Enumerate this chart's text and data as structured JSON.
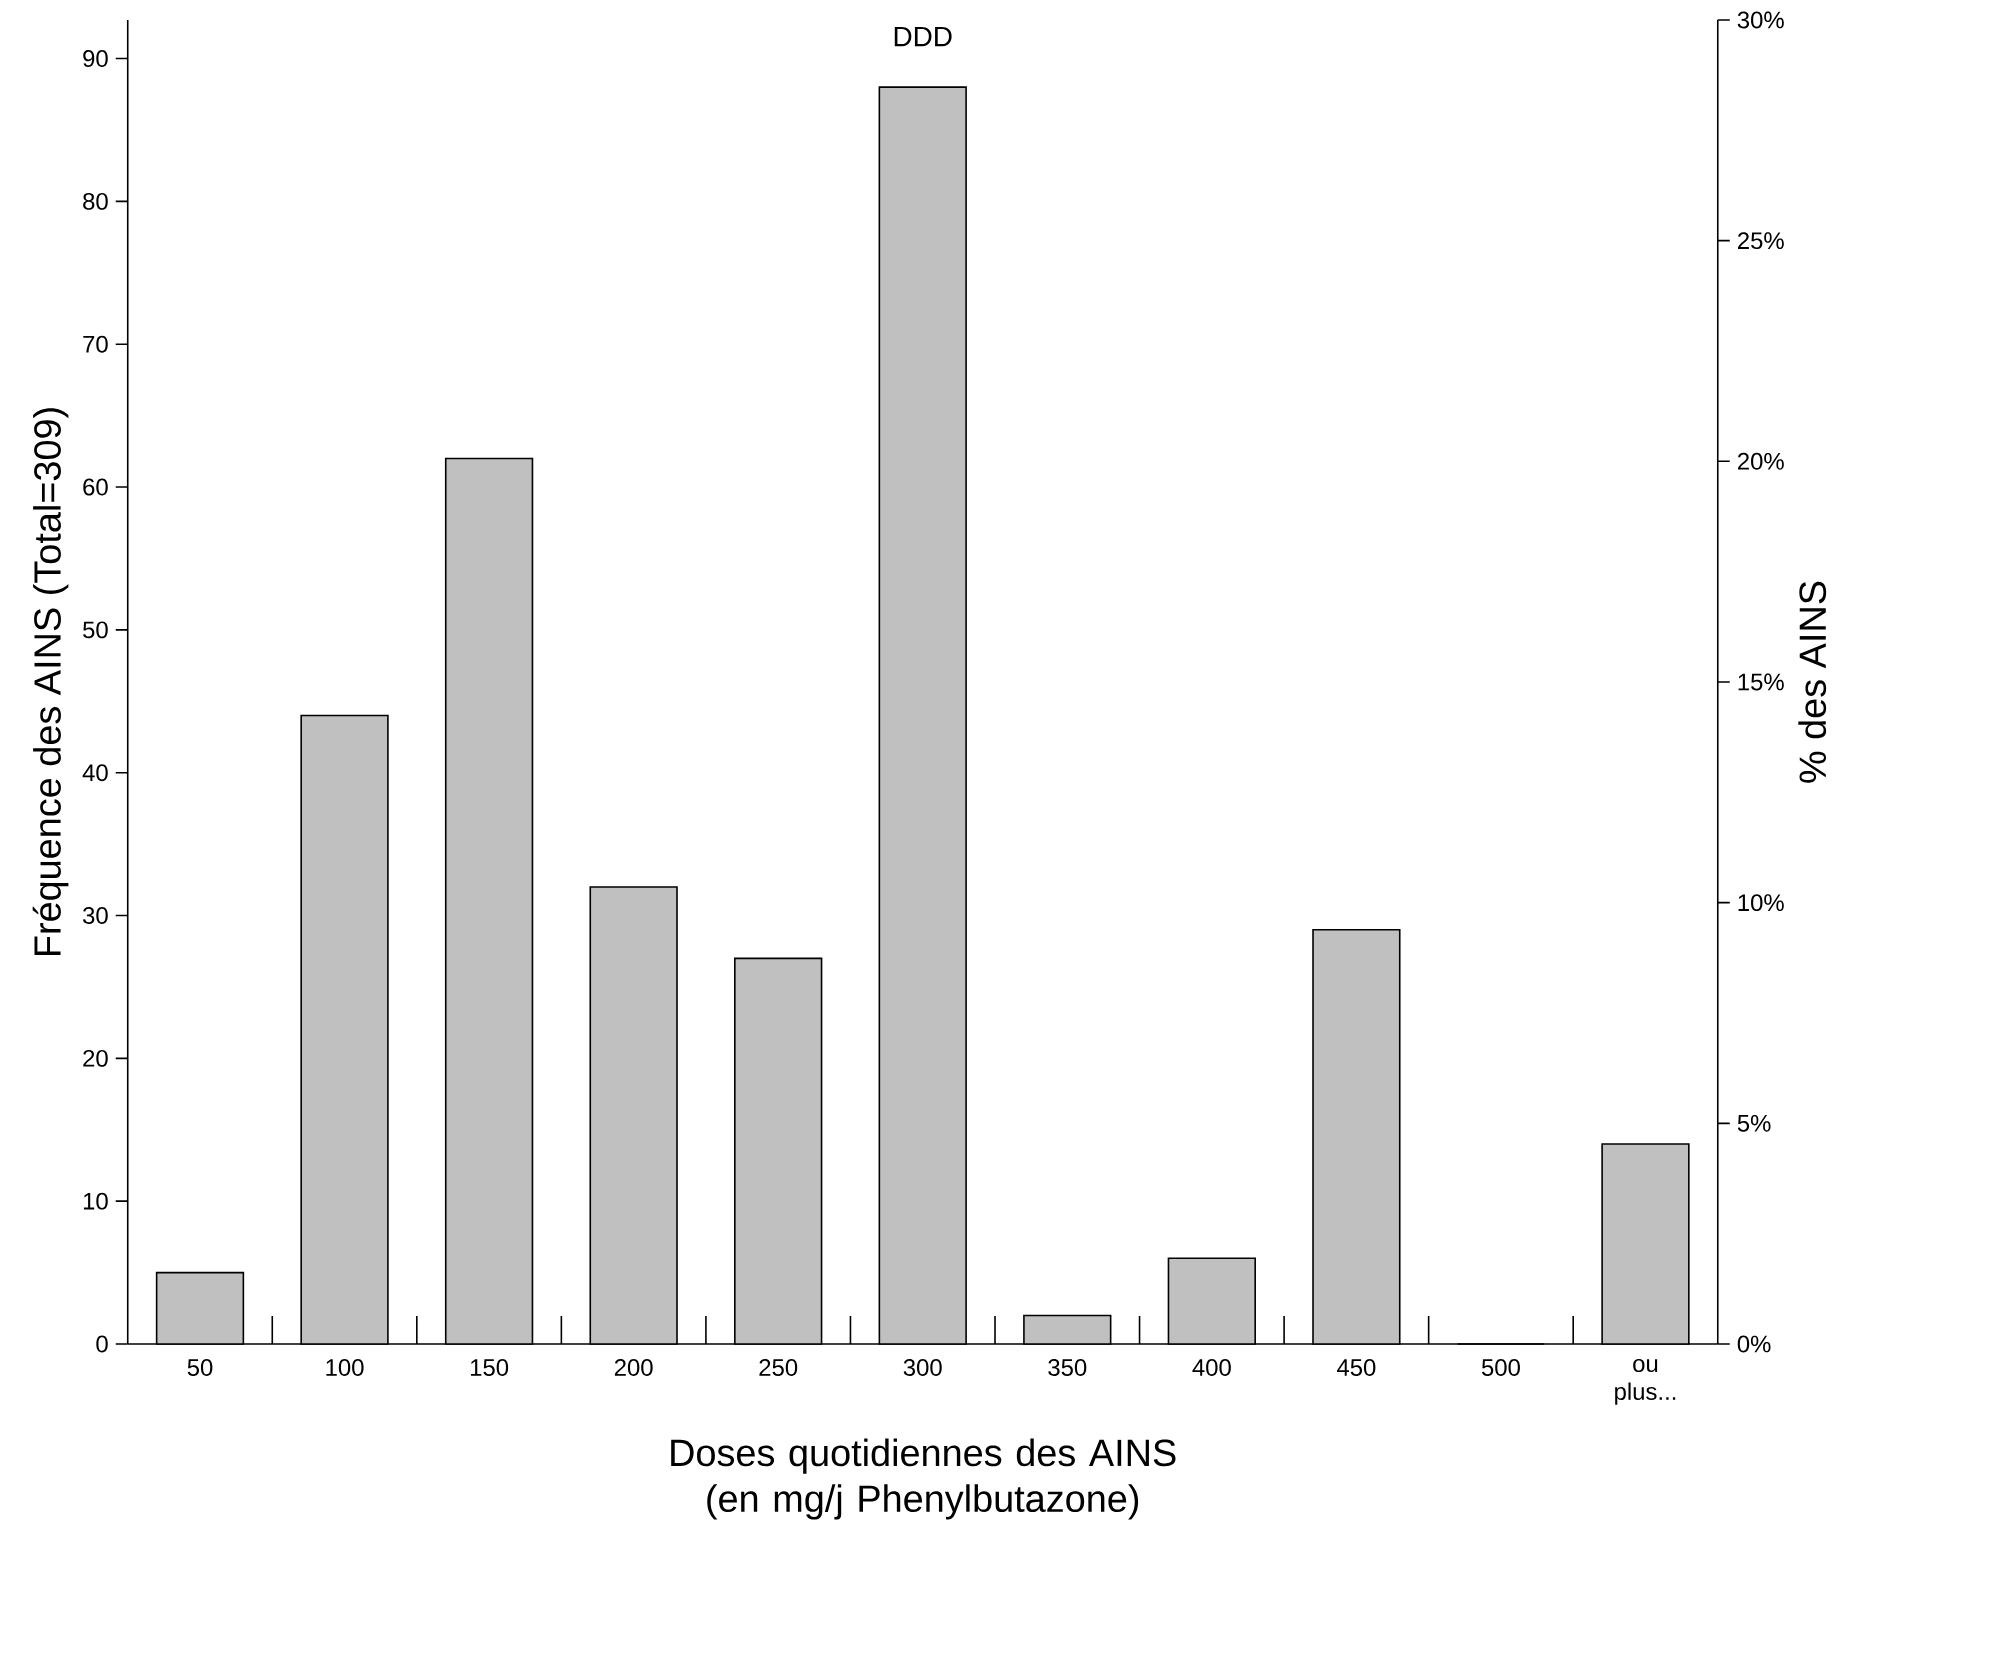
{
  "chart_data": {
    "type": "bar",
    "xlabel": "Doses quotidiennes des AINS (en mg/j Phenylbutazone)",
    "ylabel": "Fréquence des AINS (Total=309)",
    "y2label": "% des AINS",
    "categories": [
      "50",
      "100",
      "150",
      "200",
      "250",
      "300",
      "350",
      "400",
      "450",
      "500",
      "ou plus..."
    ],
    "series": [
      {
        "color": "#c0c0c0",
        "values": [
          5,
          44,
          62,
          32,
          27,
          88,
          2,
          6,
          29,
          0,
          14
        ]
      }
    ],
    "ylim": [
      0,
      92.7
    ],
    "yticks": [
      0,
      10,
      20,
      30,
      40,
      50,
      60,
      70,
      80,
      90
    ],
    "y2lim": [
      0,
      30
    ],
    "y2ticks": [
      {
        "value": 0,
        "label": "0%"
      },
      {
        "value": 5,
        "label": "5%"
      },
      {
        "value": 10,
        "label": "10%"
      },
      {
        "value": 15,
        "label": "15%"
      },
      {
        "value": 20,
        "label": "20%"
      },
      {
        "value": 25,
        "label": "25%"
      },
      {
        "value": 30,
        "label": "30%"
      }
    ],
    "annotations": [
      "DDD"
    ],
    "grid": false
  }
}
